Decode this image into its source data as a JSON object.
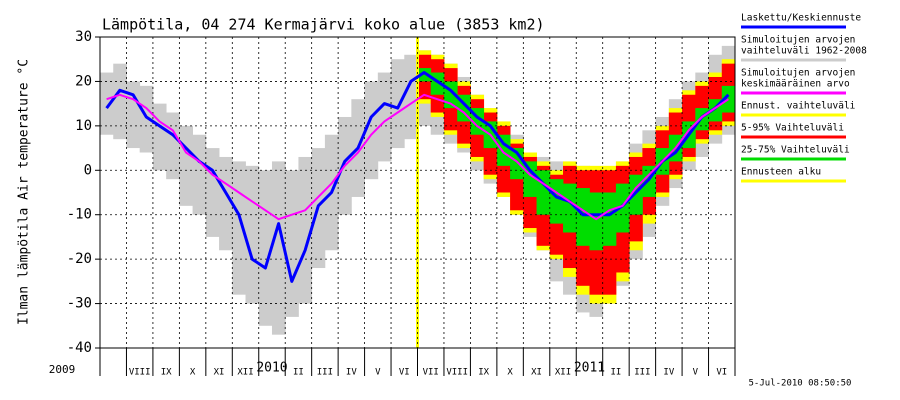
{
  "chart_data": {
    "type": "band-line",
    "title": "Lämpötila, 04 274 Kermajärvi koko alue (3853 km2)",
    "y_label": "Ilman lämpötila Air temperature °C",
    "start_label": "2009",
    "timestamp": "5-Jul-2010 08:50:50",
    "ylim": [
      -40,
      30
    ],
    "yticks": [
      -40,
      -30,
      -20,
      -10,
      0,
      10,
      20,
      30
    ],
    "grid": true,
    "categories": [
      null,
      null,
      "VIII",
      null,
      "IX",
      null,
      "X",
      null,
      "XI",
      null,
      "XII",
      null,
      "2010",
      null,
      "II",
      null,
      "III",
      null,
      "IV",
      null,
      "V",
      null,
      "VI",
      null,
      "VII",
      null,
      "VIII",
      null,
      "IX",
      null,
      "X",
      null,
      "XI",
      null,
      "XII",
      null,
      "2011",
      null,
      "II",
      null,
      "III",
      null,
      "IV",
      null,
      "V",
      null,
      "VI",
      null
    ],
    "bands": [
      {
        "name": [
          "Simuloitujen arvojen",
          "vaihteluväli 1962-2008"
        ],
        "color": "#cccccc",
        "low": [
          8,
          7,
          5,
          4,
          0,
          -2,
          -8,
          -10,
          -15,
          -18,
          -28,
          -30,
          -35,
          -37,
          -33,
          -30,
          -22,
          -18,
          -10,
          -6,
          -2,
          2,
          5,
          7,
          10,
          8,
          6,
          4,
          0,
          -3,
          -6,
          -10,
          -15,
          -18,
          -25,
          -28,
          -32,
          -33,
          -30,
          -26,
          -20,
          -15,
          -8,
          -4,
          0,
          3,
          6,
          8
        ],
        "high": [
          22,
          24,
          20,
          19,
          15,
          13,
          10,
          8,
          5,
          3,
          2,
          1,
          0,
          2,
          0,
          3,
          5,
          8,
          12,
          16,
          20,
          22,
          25,
          26,
          27,
          26,
          24,
          21,
          17,
          14,
          10,
          8,
          4,
          3,
          2,
          1,
          1,
          0,
          0,
          2,
          6,
          9,
          12,
          16,
          20,
          22,
          26,
          28
        ]
      },
      {
        "name": [
          "Ennust. vaihteluväli"
        ],
        "color": "#ffff00",
        "low": [
          null,
          null,
          null,
          null,
          null,
          null,
          null,
          null,
          null,
          null,
          null,
          null,
          null,
          null,
          null,
          null,
          null,
          null,
          null,
          null,
          null,
          null,
          null,
          null,
          15,
          12,
          8,
          5,
          2,
          -2,
          -6,
          -10,
          -14,
          -18,
          -20,
          -24,
          -28,
          -30,
          -30,
          -25,
          -18,
          -12,
          -6,
          -2,
          2,
          6,
          8,
          10
        ],
        "high": [
          null,
          null,
          null,
          null,
          null,
          null,
          null,
          null,
          null,
          null,
          null,
          null,
          null,
          null,
          null,
          null,
          null,
          null,
          null,
          null,
          null,
          null,
          null,
          null,
          27,
          26,
          24,
          20,
          17,
          14,
          11,
          7,
          4,
          2,
          0,
          2,
          1,
          1,
          1,
          2,
          4,
          6,
          10,
          14,
          18,
          20,
          22,
          25
        ]
      },
      {
        "name": [
          "5-95% Vaihteluväli"
        ],
        "color": "#ff0000",
        "low": [
          null,
          null,
          null,
          null,
          null,
          null,
          null,
          null,
          null,
          null,
          null,
          null,
          null,
          null,
          null,
          null,
          null,
          null,
          null,
          null,
          null,
          null,
          null,
          null,
          16,
          13,
          9,
          6,
          3,
          -1,
          -5,
          -9,
          -13,
          -17,
          -19,
          -22,
          -26,
          -28,
          -28,
          -23,
          -16,
          -10,
          -5,
          -1,
          3,
          7,
          9,
          11
        ],
        "high": [
          null,
          null,
          null,
          null,
          null,
          null,
          null,
          null,
          null,
          null,
          null,
          null,
          null,
          null,
          null,
          null,
          null,
          null,
          null,
          null,
          null,
          null,
          null,
          null,
          26,
          25,
          23,
          19,
          16,
          13,
          10,
          6,
          3,
          1,
          -1,
          1,
          0,
          0,
          0,
          1,
          3,
          5,
          9,
          13,
          17,
          19,
          21,
          24
        ]
      },
      {
        "name": [
          "25-75% Vaihteluväli"
        ],
        "color": "#00dd00",
        "low": [
          null,
          null,
          null,
          null,
          null,
          null,
          null,
          null,
          null,
          null,
          null,
          null,
          null,
          null,
          null,
          null,
          null,
          null,
          null,
          null,
          null,
          null,
          null,
          null,
          20,
          17,
          14,
          11,
          8,
          5,
          1,
          -2,
          -6,
          -10,
          -12,
          -14,
          -17,
          -18,
          -17,
          -14,
          -10,
          -6,
          -1,
          2,
          5,
          9,
          11,
          13
        ],
        "high": [
          null,
          null,
          null,
          null,
          null,
          null,
          null,
          null,
          null,
          null,
          null,
          null,
          null,
          null,
          null,
          null,
          null,
          null,
          null,
          null,
          null,
          null,
          null,
          null,
          23,
          22,
          20,
          17,
          14,
          11,
          8,
          5,
          2,
          0,
          -2,
          -3,
          -4,
          -5,
          -5,
          -3,
          -1,
          1,
          5,
          8,
          11,
          14,
          16,
          19
        ]
      }
    ],
    "series": [
      {
        "name": [
          "Laskettu/Keskiennuste"
        ],
        "color": "#0000ff",
        "width": 3,
        "values": [
          14,
          18,
          17,
          12,
          10,
          8,
          5,
          2,
          0,
          -5,
          -10,
          -20,
          -22,
          -12,
          -25,
          -18,
          -8,
          -5,
          2,
          5,
          12,
          15,
          14,
          20,
          22,
          20,
          18,
          15,
          12,
          10,
          6,
          4,
          0,
          -3,
          -6,
          -7,
          -10,
          -10,
          -10,
          -8,
          -5,
          -2,
          2,
          4,
          8,
          12,
          14,
          17
        ]
      },
      {
        "name": [
          "Simuloitujen arvojen",
          "keskimääräinen arvo"
        ],
        "color": "#ff00ff",
        "width": 2,
        "values": [
          16,
          17,
          16,
          14,
          11,
          9,
          4,
          2,
          -1,
          -3,
          -5,
          -7,
          -9,
          -11,
          -10,
          -9,
          -6,
          -3,
          1,
          4,
          8,
          11,
          13,
          15,
          17,
          16,
          15,
          13,
          10,
          8,
          4,
          2,
          -1,
          -3,
          -5,
          -7,
          -9,
          -11,
          -9,
          -8,
          -4,
          -1,
          2,
          5,
          9,
          12,
          14,
          16
        ]
      }
    ],
    "forecast_start": {
      "name": [
        "Ennusteen alku"
      ],
      "color": "#ffff00"
    },
    "legend_order": [
      "series.0",
      "bands.0",
      "series.1",
      "bands.1",
      "bands.2",
      "bands.3",
      "forecast_start"
    ]
  }
}
